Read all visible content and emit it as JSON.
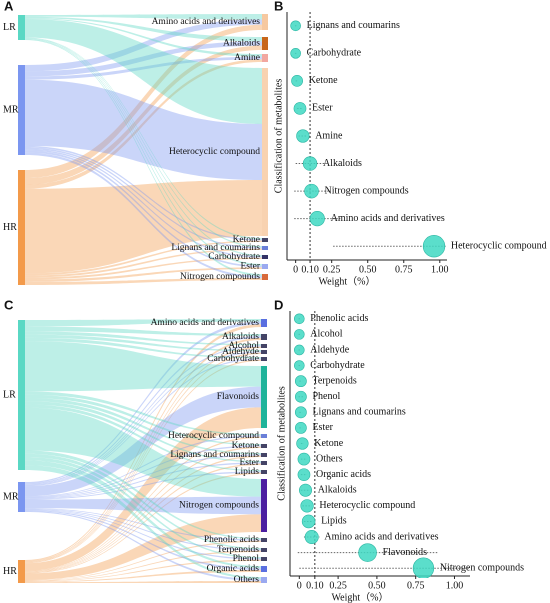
{
  "chart_data": [
    {
      "type": "sankey",
      "panel": "A",
      "sources": [
        {
          "name": "LR",
          "color": "#5ad8c4"
        },
        {
          "name": "MR",
          "color": "#7b96f0"
        },
        {
          "name": "HR",
          "color": "#f39a4a"
        }
      ],
      "targets": [
        {
          "name": "Amino acids and derivatives",
          "color": "#f6c8a0"
        },
        {
          "name": "Alkaloids",
          "color": "#c8661a"
        },
        {
          "name": "Amine",
          "color": "#f2a7a0"
        },
        {
          "name": "Heterocyclic compound",
          "color": "#f8d2b0"
        },
        {
          "name": "Ketone",
          "color": "#444466"
        },
        {
          "name": "Lignans and coumarins",
          "color": "#6a7fd8"
        },
        {
          "name": "Carbohydrate",
          "color": "#333366"
        },
        {
          "name": "Ester",
          "color": "#9aa9f0"
        },
        {
          "name": "Nitrogen compounds",
          "color": "#d86a3a"
        }
      ]
    },
    {
      "type": "dot",
      "panel": "B",
      "xlabel": "Weight（%）",
      "ylabel": "Classification of metabolites",
      "color": "#3ed8c2",
      "categories": [
        "Lignans and coumarins",
        "Carbohydrate",
        "Ketone",
        "Ester",
        "Amine",
        "Alkaloids",
        "Nitrogen compounds",
        "Amino acids and derivatives",
        "Heterocyclic compound"
      ],
      "values": [
        0.0,
        0.0,
        0.01,
        0.03,
        0.05,
        0.1,
        0.11,
        0.15,
        0.96
      ],
      "errors": [
        0.005,
        0.005,
        0.01,
        0.02,
        0.03,
        0.1,
        0.12,
        0.16,
        0.7
      ],
      "vline": 0.1,
      "xlim": [
        -0.06,
        1.05
      ],
      "xticks": [
        0,
        {
          "value": 0.1,
          "label": "0.10"
        },
        0.25,
        {
          "value": 0.5,
          "label": "0.50"
        },
        0.75,
        {
          "value": 1,
          "label": "1.00"
        }
      ]
    },
    {
      "type": "sankey",
      "panel": "C",
      "sources": [
        {
          "name": "LR",
          "color": "#5ad8c4"
        },
        {
          "name": "MR",
          "color": "#7b96f0"
        },
        {
          "name": "HR",
          "color": "#f39a4a"
        }
      ],
      "targets": [
        {
          "name": "Amino acids and derivatives",
          "color": "#5a6fe0"
        },
        {
          "name": "Alkaloids",
          "color": "#444466"
        },
        {
          "name": "Alcohol",
          "color": "#444466"
        },
        {
          "name": "Aldehyde",
          "color": "#444466"
        },
        {
          "name": "Carbohydrate",
          "color": "#444466"
        },
        {
          "name": "Flavonoids",
          "color": "#1fb39a"
        },
        {
          "name": "Heterocyclic compound",
          "color": "#6a7fd8"
        },
        {
          "name": "Ketone",
          "color": "#444466"
        },
        {
          "name": "Lignans and coumarins",
          "color": "#444466"
        },
        {
          "name": "Ester",
          "color": "#444466"
        },
        {
          "name": "Lipids",
          "color": "#444466"
        },
        {
          "name": "Nitrogen compounds",
          "color": "#4b1fa0"
        },
        {
          "name": "Phenolic acids",
          "color": "#444466"
        },
        {
          "name": "Terpenoids",
          "color": "#444466"
        },
        {
          "name": "Phenol",
          "color": "#444466"
        },
        {
          "name": "Organic acids",
          "color": "#5a6fe0"
        },
        {
          "name": "Others",
          "color": "#9aa9f0"
        }
      ]
    },
    {
      "type": "dot",
      "panel": "D",
      "xlabel": "Weight（%）",
      "ylabel": "Classification of metabolites",
      "color": "#3ed8c2",
      "categories": [
        "Phenolic acids",
        "Alcohol",
        "Aldehyde",
        "Carbohydrate",
        "Terpenoids",
        "Phenol",
        "Lignans and coumarins",
        "Ester",
        "Ketone",
        "Others",
        "Organic acids",
        "Alkaloids",
        "Heterocyclic compound",
        "Lipids",
        "Amino acids and derivatives",
        "Flavonoids",
        "Nitrogen compounds"
      ],
      "values": [
        0.0,
        0.0,
        0.0,
        0.0,
        0.01,
        0.01,
        0.01,
        0.01,
        0.02,
        0.03,
        0.03,
        0.04,
        0.05,
        0.06,
        0.08,
        0.44,
        0.8
      ],
      "errors": [
        0.005,
        0.005,
        0.005,
        0.005,
        0.01,
        0.015,
        0.01,
        0.01,
        0.01,
        0.02,
        0.02,
        0.03,
        0.03,
        0.03,
        0.05,
        0.45,
        0.8
      ],
      "vline": 0.1,
      "xlim": [
        -0.06,
        1.1
      ],
      "xticks": [
        0,
        {
          "value": 0.1,
          "label": "0.10"
        },
        0.25,
        {
          "value": 0.5,
          "label": "0.50"
        },
        0.75,
        {
          "value": 1,
          "label": "1.00"
        }
      ]
    }
  ]
}
